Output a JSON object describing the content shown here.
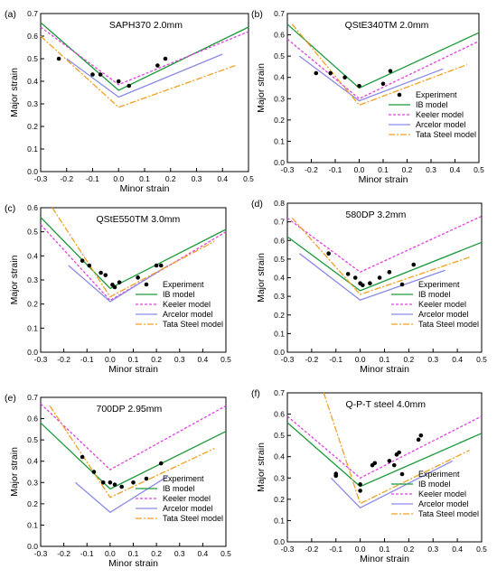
{
  "figure": {
    "series_styles": [
      {
        "name": "Experiment",
        "kind": "scatter",
        "color": "#000000"
      },
      {
        "name": "IB model",
        "kind": "line",
        "color": "#1a9a3a",
        "dash": ""
      },
      {
        "name": "Keeler model",
        "kind": "line",
        "color": "#e040e0",
        "dash": "3,2"
      },
      {
        "name": "Arcelor model",
        "kind": "line",
        "color": "#8a8ae6",
        "dash": ""
      },
      {
        "name": "Tata Steel model",
        "kind": "line",
        "color": "#f0a020",
        "dash": "7,2,2,2"
      }
    ]
  },
  "chart_data": [
    {
      "type": "line",
      "panel_label": "(a)",
      "title": "SAPH370 2.0mm",
      "xlabel": "Minor strain",
      "ylabel": "Major strain",
      "xlim": [
        -0.3,
        0.5
      ],
      "ylim": [
        0.0,
        0.7
      ],
      "xticks": [
        "-0.3",
        "-0.2",
        "-0.1",
        "0.0",
        "0.1",
        "0.2",
        "0.3",
        "0.4",
        "0.5"
      ],
      "yticks": [
        "0.0",
        "0.1",
        "0.2",
        "0.3",
        "0.4",
        "0.5",
        "0.6",
        "0.7"
      ],
      "legend": "none",
      "series": [
        {
          "name": "Experiment",
          "points": [
            [
              -0.23,
              0.5
            ],
            [
              -0.1,
              0.43
            ],
            [
              -0.07,
              0.43
            ],
            [
              0.0,
              0.4
            ],
            [
              0.04,
              0.38
            ],
            [
              0.15,
              0.47
            ],
            [
              0.18,
              0.5
            ]
          ]
        },
        {
          "name": "IB model",
          "points": [
            [
              -0.3,
              0.66
            ],
            [
              0.0,
              0.36
            ],
            [
              0.5,
              0.64
            ]
          ]
        },
        {
          "name": "Keeler model",
          "points": [
            [
              -0.3,
              0.64
            ],
            [
              0.0,
              0.385
            ],
            [
              0.5,
              0.62
            ]
          ]
        },
        {
          "name": "Arcelor model",
          "points": [
            [
              -0.2,
              0.5
            ],
            [
              0.0,
              0.33
            ],
            [
              0.4,
              0.52
            ]
          ]
        },
        {
          "name": "Tata Steel model",
          "points": [
            [
              -0.3,
              0.6
            ],
            [
              0.0,
              0.285
            ],
            [
              0.45,
              0.47
            ]
          ]
        }
      ]
    },
    {
      "type": "line",
      "panel_label": "(b)",
      "title": "QStE340TM 2.0mm",
      "xlabel": "Minor strain",
      "ylabel": "Major strain",
      "xlim": [
        -0.3,
        0.5
      ],
      "ylim": [
        0.0,
        0.7
      ],
      "xticks": [
        "-0.3",
        "-0.2",
        "-0.1",
        "0.0",
        "0.1",
        "0.2",
        "0.3",
        "0.4",
        "0.5"
      ],
      "yticks": [
        "0.0",
        "0.1",
        "0.2",
        "0.3",
        "0.4",
        "0.5",
        "0.6",
        "0.7"
      ],
      "legend": "bottom-right",
      "series": [
        {
          "name": "Experiment",
          "points": [
            [
              -0.18,
              0.42
            ],
            [
              -0.12,
              0.42
            ],
            [
              -0.06,
              0.4
            ],
            [
              0.0,
              0.36
            ],
            [
              0.1,
              0.37
            ],
            [
              0.13,
              0.43
            ]
          ]
        },
        {
          "name": "IB model",
          "points": [
            [
              -0.3,
              0.65
            ],
            [
              0.0,
              0.35
            ],
            [
              0.5,
              0.61
            ]
          ]
        },
        {
          "name": "Keeler model",
          "points": [
            [
              -0.3,
              0.58
            ],
            [
              0.0,
              0.3
            ],
            [
              0.5,
              0.57
            ]
          ]
        },
        {
          "name": "Arcelor model",
          "points": [
            [
              -0.25,
              0.5
            ],
            [
              0.0,
              0.29
            ],
            [
              0.35,
              0.44
            ]
          ]
        },
        {
          "name": "Tata Steel model",
          "points": [
            [
              -0.28,
              0.65
            ],
            [
              0.0,
              0.27
            ],
            [
              0.45,
              0.46
            ]
          ]
        }
      ]
    },
    {
      "type": "line",
      "panel_label": "(c)",
      "title": "QStE550TM 3.0mm",
      "xlabel": "Minor strain",
      "ylabel": "Major strain",
      "xlim": [
        -0.3,
        0.5
      ],
      "ylim": [
        0.0,
        0.6
      ],
      "xticks": [
        "-0.3",
        "-0.2",
        "-0.1",
        "0.0",
        "0.1",
        "0.2",
        "0.3",
        "0.4",
        "0.5"
      ],
      "yticks": [
        "0.0",
        "0.1",
        "0.2",
        "0.3",
        "0.4",
        "0.5",
        "0.6"
      ],
      "legend": "bottom-right",
      "series": [
        {
          "name": "Experiment",
          "points": [
            [
              -0.12,
              0.38
            ],
            [
              -0.09,
              0.36
            ],
            [
              -0.04,
              0.33
            ],
            [
              -0.02,
              0.32
            ],
            [
              0.01,
              0.28
            ],
            [
              0.02,
              0.27
            ],
            [
              0.04,
              0.29
            ],
            [
              0.12,
              0.31
            ],
            [
              0.2,
              0.36
            ],
            [
              0.22,
              0.36
            ]
          ]
        },
        {
          "name": "IB model",
          "points": [
            [
              -0.3,
              0.56
            ],
            [
              0.0,
              0.265
            ],
            [
              0.5,
              0.51
            ]
          ]
        },
        {
          "name": "Keeler model",
          "points": [
            [
              -0.3,
              0.53
            ],
            [
              0.0,
              0.215
            ],
            [
              0.5,
              0.5
            ]
          ]
        },
        {
          "name": "Arcelor model",
          "points": [
            [
              -0.18,
              0.36
            ],
            [
              0.0,
              0.21
            ],
            [
              0.25,
              0.36
            ]
          ]
        },
        {
          "name": "Tata Steel model",
          "points": [
            [
              -0.25,
              0.6
            ],
            [
              0.0,
              0.23
            ],
            [
              0.45,
              0.46
            ]
          ]
        }
      ]
    },
    {
      "type": "line",
      "panel_label": "(d)",
      "title": "580DP 3.2mm",
      "xlabel": "Minor strain",
      "ylabel": "Major strain",
      "xlim": [
        -0.3,
        0.5
      ],
      "ylim": [
        0.0,
        0.8
      ],
      "xticks": [
        "-0.3",
        "-0.2",
        "-0.1",
        "0.0",
        "0.1",
        "0.2",
        "0.3",
        "0.4",
        "0.5"
      ],
      "yticks": [
        "0.0",
        "0.1",
        "0.2",
        "0.3",
        "0.4",
        "0.5",
        "0.6",
        "0.7",
        "0.8"
      ],
      "legend": "bottom-right",
      "series": [
        {
          "name": "Experiment",
          "points": [
            [
              -0.13,
              0.53
            ],
            [
              -0.05,
              0.42
            ],
            [
              -0.02,
              0.4
            ],
            [
              0.0,
              0.37
            ],
            [
              0.01,
              0.36
            ],
            [
              0.04,
              0.37
            ],
            [
              0.08,
              0.4
            ],
            [
              0.12,
              0.43
            ],
            [
              0.22,
              0.47
            ]
          ]
        },
        {
          "name": "IB model",
          "points": [
            [
              -0.3,
              0.62
            ],
            [
              0.0,
              0.33
            ],
            [
              0.5,
              0.59
            ]
          ]
        },
        {
          "name": "Keeler model",
          "points": [
            [
              -0.3,
              0.72
            ],
            [
              0.0,
              0.43
            ],
            [
              0.5,
              0.73
            ]
          ]
        },
        {
          "name": "Arcelor model",
          "points": [
            [
              -0.25,
              0.53
            ],
            [
              0.0,
              0.28
            ],
            [
              0.35,
              0.44
            ]
          ]
        },
        {
          "name": "Tata Steel model",
          "points": [
            [
              -0.28,
              0.72
            ],
            [
              0.0,
              0.31
            ],
            [
              0.45,
              0.51
            ]
          ]
        }
      ]
    },
    {
      "type": "line",
      "panel_label": "(e)",
      "title": "700DP 2.95mm",
      "xlabel": "Minor strain",
      "ylabel": "Major strain",
      "xlim": [
        -0.3,
        0.5
      ],
      "ylim": [
        0.0,
        0.7
      ],
      "xticks": [
        "-0.3",
        "-0.2",
        "-0.1",
        "0.0",
        "0.1",
        "0.2",
        "0.3",
        "0.4",
        "0.5"
      ],
      "yticks": [
        "0.0",
        "0.1",
        "0.2",
        "0.3",
        "0.4",
        "0.5",
        "0.6",
        "0.7"
      ],
      "legend": "bottom-right",
      "series": [
        {
          "name": "Experiment",
          "points": [
            [
              -0.12,
              0.42
            ],
            [
              -0.07,
              0.35
            ],
            [
              -0.03,
              0.3
            ],
            [
              0.0,
              0.3
            ],
            [
              0.02,
              0.29
            ],
            [
              0.05,
              0.28
            ],
            [
              0.1,
              0.3
            ],
            [
              0.22,
              0.39
            ]
          ]
        },
        {
          "name": "IB model",
          "points": [
            [
              -0.3,
              0.58
            ],
            [
              0.0,
              0.27
            ],
            [
              0.5,
              0.54
            ]
          ]
        },
        {
          "name": "Keeler model",
          "points": [
            [
              -0.3,
              0.67
            ],
            [
              0.0,
              0.36
            ],
            [
              0.5,
              0.66
            ]
          ]
        },
        {
          "name": "Arcelor model",
          "points": [
            [
              -0.15,
              0.3
            ],
            [
              0.0,
              0.16
            ],
            [
              0.25,
              0.33
            ]
          ]
        },
        {
          "name": "Tata Steel model",
          "points": [
            [
              -0.26,
              0.66
            ],
            [
              0.0,
              0.23
            ],
            [
              0.45,
              0.46
            ]
          ]
        }
      ]
    },
    {
      "type": "line",
      "panel_label": "(f)",
      "title": "Q-P-T steel 4.0mm",
      "xlabel": "Minor strain",
      "ylabel": "Major strain",
      "xlim": [
        -0.3,
        0.5
      ],
      "ylim": [
        0.0,
        0.7
      ],
      "xticks": [
        "-0.3",
        "-0.2",
        "-0.1",
        "0.0",
        "0.1",
        "0.2",
        "0.3",
        "0.4",
        "0.5"
      ],
      "yticks": [
        "0.0",
        "0.1",
        "0.2",
        "0.3",
        "0.4",
        "0.5",
        "0.6",
        "0.7"
      ],
      "legend": "bottom-right",
      "series": [
        {
          "name": "Experiment",
          "points": [
            [
              -0.1,
              0.31
            ],
            [
              -0.1,
              0.32
            ],
            [
              0.0,
              0.24
            ],
            [
              0.0,
              0.27
            ],
            [
              0.05,
              0.36
            ],
            [
              0.06,
              0.37
            ],
            [
              0.12,
              0.38
            ],
            [
              0.15,
              0.41
            ],
            [
              0.16,
              0.42
            ],
            [
              0.14,
              0.36
            ],
            [
              0.24,
              0.48
            ],
            [
              0.25,
              0.5
            ]
          ]
        },
        {
          "name": "IB model",
          "points": [
            [
              -0.3,
              0.56
            ],
            [
              0.0,
              0.26
            ],
            [
              0.5,
              0.51
            ]
          ]
        },
        {
          "name": "Keeler model",
          "points": [
            [
              -0.3,
              0.59
            ],
            [
              0.0,
              0.3
            ],
            [
              0.5,
              0.59
            ]
          ]
        },
        {
          "name": "Arcelor model",
          "points": [
            [
              -0.12,
              0.3
            ],
            [
              0.0,
              0.16
            ],
            [
              0.38,
              0.38
            ]
          ]
        },
        {
          "name": "Tata Steel model",
          "points": [
            [
              -0.15,
              0.7
            ],
            [
              0.0,
              0.18
            ],
            [
              0.45,
              0.43
            ]
          ]
        }
      ]
    }
  ]
}
